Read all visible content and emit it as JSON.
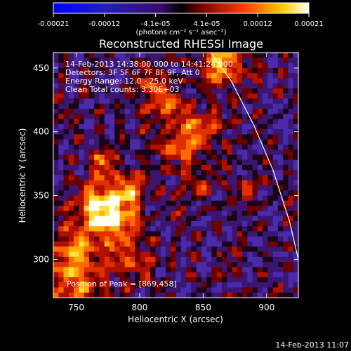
{
  "colorbar": {
    "tick_labels": [
      "-0.00021",
      "-0.00012",
      "-4.1e-05",
      "4.1e-05",
      "0.00012",
      "0.00021"
    ],
    "unit_label": "(photons cm⁻² s⁻¹ asec⁻²)",
    "range": [
      -0.00021,
      0.00021
    ]
  },
  "chart_data": {
    "type": "heatmap",
    "title": "Reconstructed RHESSI Image",
    "xlabel": "Heliocentric X (arcsec)",
    "ylabel": "Heliocentric Y (arcsec)",
    "xlim": [
      732,
      925
    ],
    "ylim": [
      270,
      462
    ],
    "xticks": [
      750,
      800,
      850,
      900
    ],
    "yticks": [
      300,
      350,
      400,
      450
    ],
    "annotations": [
      "14-Feb-2013 14:38:00.000 to 14:41:24.000",
      "Detectors: 3F 5F 6F 7F 8F 9F, Att 0",
      "Energy Range: 12.0 - 25.0 keV",
      "Clean    Total counts: 3.30E+03"
    ],
    "peak_label": "Position of Peak = [869,458]",
    "peak": {
      "x": 869,
      "y": 458
    },
    "limb_curve": [
      [
        856,
        462
      ],
      [
        872,
        440
      ],
      [
        890,
        405
      ],
      [
        905,
        370
      ],
      [
        918,
        330
      ],
      [
        925,
        300
      ]
    ],
    "colormap": "blue-purple-red-yellow-white"
  },
  "footer": {
    "timestamp": "14-Feb-2013 11:07"
  }
}
